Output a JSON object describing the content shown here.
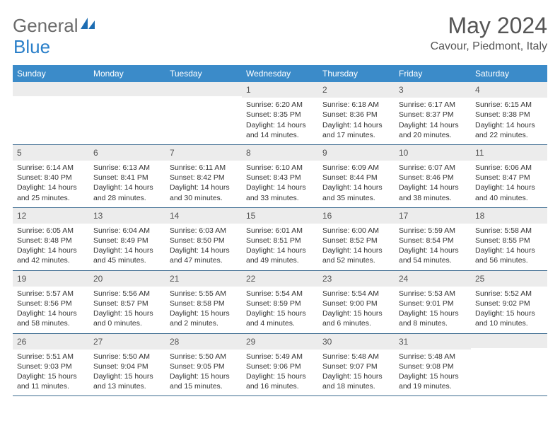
{
  "logo": {
    "text1": "General",
    "text2": "Blue"
  },
  "title": "May 2024",
  "location": "Cavour, Piedmont, Italy",
  "colors": {
    "header_bg": "#3b8bc9",
    "header_text": "#ffffff",
    "daynum_bg": "#ececec",
    "border": "#3b6a8f",
    "body_text": "#333333",
    "title_text": "#555555",
    "logo_gray": "#6b6b6b",
    "logo_blue": "#2a7fc9"
  },
  "day_names": [
    "Sunday",
    "Monday",
    "Tuesday",
    "Wednesday",
    "Thursday",
    "Friday",
    "Saturday"
  ],
  "weeks": [
    [
      {
        "n": "",
        "lines": []
      },
      {
        "n": "",
        "lines": []
      },
      {
        "n": "",
        "lines": []
      },
      {
        "n": "1",
        "lines": [
          "Sunrise: 6:20 AM",
          "Sunset: 8:35 PM",
          "Daylight: 14 hours",
          "and 14 minutes."
        ]
      },
      {
        "n": "2",
        "lines": [
          "Sunrise: 6:18 AM",
          "Sunset: 8:36 PM",
          "Daylight: 14 hours",
          "and 17 minutes."
        ]
      },
      {
        "n": "3",
        "lines": [
          "Sunrise: 6:17 AM",
          "Sunset: 8:37 PM",
          "Daylight: 14 hours",
          "and 20 minutes."
        ]
      },
      {
        "n": "4",
        "lines": [
          "Sunrise: 6:15 AM",
          "Sunset: 8:38 PM",
          "Daylight: 14 hours",
          "and 22 minutes."
        ]
      }
    ],
    [
      {
        "n": "5",
        "lines": [
          "Sunrise: 6:14 AM",
          "Sunset: 8:40 PM",
          "Daylight: 14 hours",
          "and 25 minutes."
        ]
      },
      {
        "n": "6",
        "lines": [
          "Sunrise: 6:13 AM",
          "Sunset: 8:41 PM",
          "Daylight: 14 hours",
          "and 28 minutes."
        ]
      },
      {
        "n": "7",
        "lines": [
          "Sunrise: 6:11 AM",
          "Sunset: 8:42 PM",
          "Daylight: 14 hours",
          "and 30 minutes."
        ]
      },
      {
        "n": "8",
        "lines": [
          "Sunrise: 6:10 AM",
          "Sunset: 8:43 PM",
          "Daylight: 14 hours",
          "and 33 minutes."
        ]
      },
      {
        "n": "9",
        "lines": [
          "Sunrise: 6:09 AM",
          "Sunset: 8:44 PM",
          "Daylight: 14 hours",
          "and 35 minutes."
        ]
      },
      {
        "n": "10",
        "lines": [
          "Sunrise: 6:07 AM",
          "Sunset: 8:46 PM",
          "Daylight: 14 hours",
          "and 38 minutes."
        ]
      },
      {
        "n": "11",
        "lines": [
          "Sunrise: 6:06 AM",
          "Sunset: 8:47 PM",
          "Daylight: 14 hours",
          "and 40 minutes."
        ]
      }
    ],
    [
      {
        "n": "12",
        "lines": [
          "Sunrise: 6:05 AM",
          "Sunset: 8:48 PM",
          "Daylight: 14 hours",
          "and 42 minutes."
        ]
      },
      {
        "n": "13",
        "lines": [
          "Sunrise: 6:04 AM",
          "Sunset: 8:49 PM",
          "Daylight: 14 hours",
          "and 45 minutes."
        ]
      },
      {
        "n": "14",
        "lines": [
          "Sunrise: 6:03 AM",
          "Sunset: 8:50 PM",
          "Daylight: 14 hours",
          "and 47 minutes."
        ]
      },
      {
        "n": "15",
        "lines": [
          "Sunrise: 6:01 AM",
          "Sunset: 8:51 PM",
          "Daylight: 14 hours",
          "and 49 minutes."
        ]
      },
      {
        "n": "16",
        "lines": [
          "Sunrise: 6:00 AM",
          "Sunset: 8:52 PM",
          "Daylight: 14 hours",
          "and 52 minutes."
        ]
      },
      {
        "n": "17",
        "lines": [
          "Sunrise: 5:59 AM",
          "Sunset: 8:54 PM",
          "Daylight: 14 hours",
          "and 54 minutes."
        ]
      },
      {
        "n": "18",
        "lines": [
          "Sunrise: 5:58 AM",
          "Sunset: 8:55 PM",
          "Daylight: 14 hours",
          "and 56 minutes."
        ]
      }
    ],
    [
      {
        "n": "19",
        "lines": [
          "Sunrise: 5:57 AM",
          "Sunset: 8:56 PM",
          "Daylight: 14 hours",
          "and 58 minutes."
        ]
      },
      {
        "n": "20",
        "lines": [
          "Sunrise: 5:56 AM",
          "Sunset: 8:57 PM",
          "Daylight: 15 hours",
          "and 0 minutes."
        ]
      },
      {
        "n": "21",
        "lines": [
          "Sunrise: 5:55 AM",
          "Sunset: 8:58 PM",
          "Daylight: 15 hours",
          "and 2 minutes."
        ]
      },
      {
        "n": "22",
        "lines": [
          "Sunrise: 5:54 AM",
          "Sunset: 8:59 PM",
          "Daylight: 15 hours",
          "and 4 minutes."
        ]
      },
      {
        "n": "23",
        "lines": [
          "Sunrise: 5:54 AM",
          "Sunset: 9:00 PM",
          "Daylight: 15 hours",
          "and 6 minutes."
        ]
      },
      {
        "n": "24",
        "lines": [
          "Sunrise: 5:53 AM",
          "Sunset: 9:01 PM",
          "Daylight: 15 hours",
          "and 8 minutes."
        ]
      },
      {
        "n": "25",
        "lines": [
          "Sunrise: 5:52 AM",
          "Sunset: 9:02 PM",
          "Daylight: 15 hours",
          "and 10 minutes."
        ]
      }
    ],
    [
      {
        "n": "26",
        "lines": [
          "Sunrise: 5:51 AM",
          "Sunset: 9:03 PM",
          "Daylight: 15 hours",
          "and 11 minutes."
        ]
      },
      {
        "n": "27",
        "lines": [
          "Sunrise: 5:50 AM",
          "Sunset: 9:04 PM",
          "Daylight: 15 hours",
          "and 13 minutes."
        ]
      },
      {
        "n": "28",
        "lines": [
          "Sunrise: 5:50 AM",
          "Sunset: 9:05 PM",
          "Daylight: 15 hours",
          "and 15 minutes."
        ]
      },
      {
        "n": "29",
        "lines": [
          "Sunrise: 5:49 AM",
          "Sunset: 9:06 PM",
          "Daylight: 15 hours",
          "and 16 minutes."
        ]
      },
      {
        "n": "30",
        "lines": [
          "Sunrise: 5:48 AM",
          "Sunset: 9:07 PM",
          "Daylight: 15 hours",
          "and 18 minutes."
        ]
      },
      {
        "n": "31",
        "lines": [
          "Sunrise: 5:48 AM",
          "Sunset: 9:08 PM",
          "Daylight: 15 hours",
          "and 19 minutes."
        ]
      },
      {
        "n": "",
        "lines": []
      }
    ]
  ]
}
